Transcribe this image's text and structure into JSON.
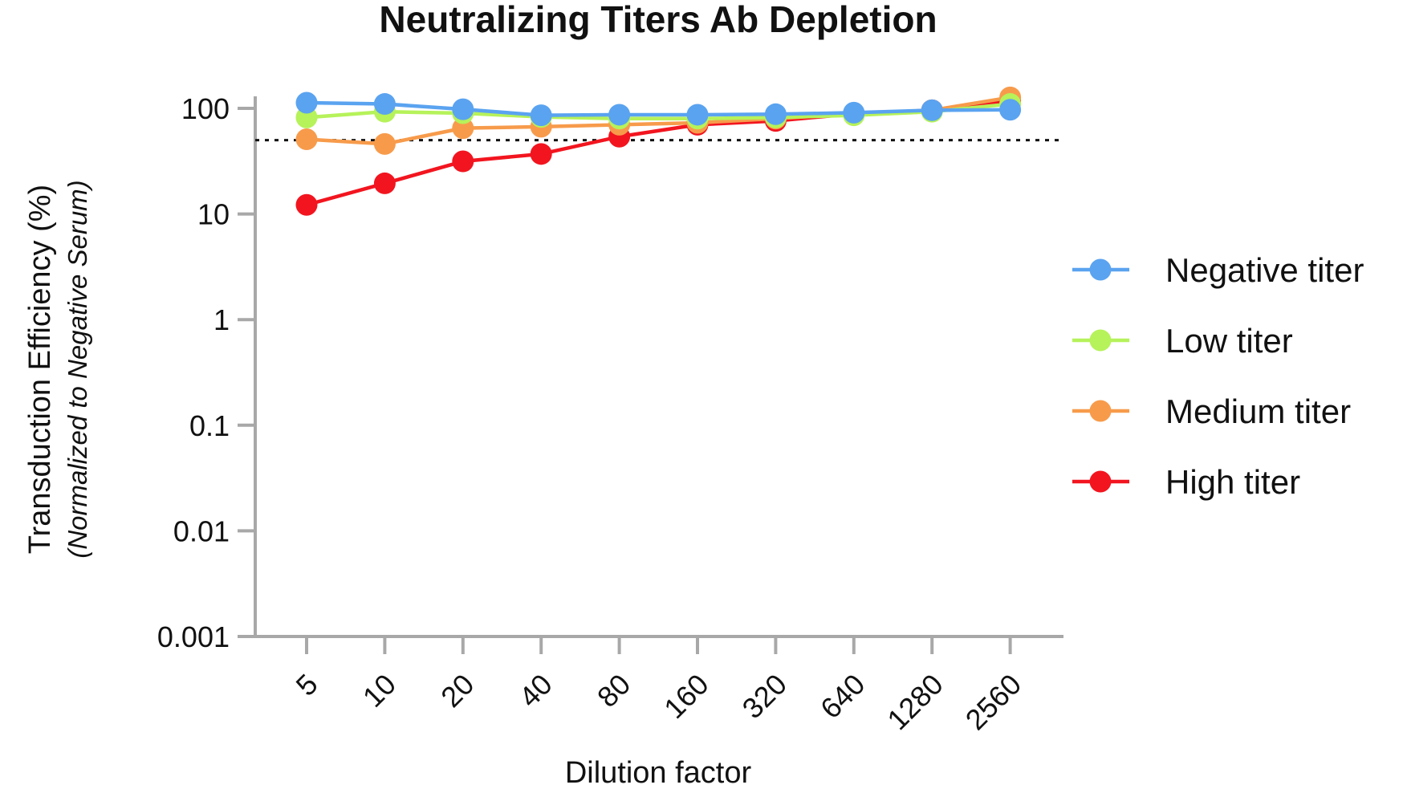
{
  "chart_data": {
    "type": "line",
    "title": "Neutralizing Titers Ab Depletion",
    "xlabel": "Dilution factor",
    "ylabel": "Transduction Efficiency (%)",
    "ylabel_sub": "(Normalized to Negative Serum)",
    "categories": [
      "5",
      "10",
      "20",
      "40",
      "80",
      "160",
      "320",
      "640",
      "1280",
      "2560"
    ],
    "yscale": "log",
    "ylim": [
      0.001,
      200
    ],
    "yticks": [
      "0.001",
      "0.01",
      "0.1",
      "1",
      "10",
      "100"
    ],
    "reference_line": {
      "y": 50,
      "style": "dotted"
    },
    "legend_position": "right",
    "series": [
      {
        "name": "Negative titer",
        "color": "#5aa3f0",
        "values": [
          113,
          110,
          98,
          86,
          87,
          87,
          88,
          91,
          96,
          97
        ]
      },
      {
        "name": "Low titer",
        "color": "#b6f25a",
        "values": [
          82,
          93,
          90,
          83,
          80,
          80,
          82,
          86,
          93,
          110
        ]
      },
      {
        "name": "Medium titer",
        "color": "#f79b4b",
        "values": [
          51,
          46,
          65,
          67,
          70,
          73,
          80,
          89,
          96,
          127
        ]
      },
      {
        "name": "High titer",
        "color": "#f2151f",
        "values": [
          12.2,
          19.5,
          31.5,
          37,
          54,
          70,
          76,
          89,
          96,
          118
        ]
      }
    ]
  }
}
